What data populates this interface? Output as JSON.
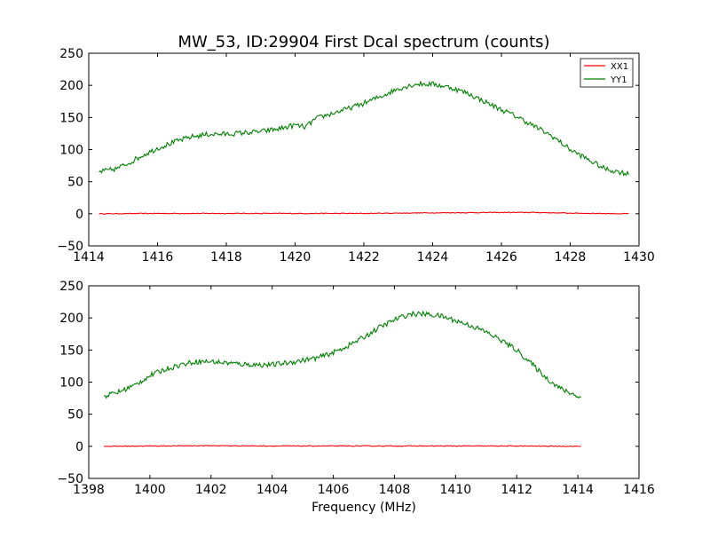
{
  "figure": {
    "title": "MW_53, ID:29904 First Dcal spectrum (counts)",
    "xlabel": "Frequency (MHz)"
  },
  "colors": {
    "xx1": "#ff0000",
    "yy1": "#008000"
  },
  "chart_data": [
    {
      "type": "line",
      "xlim": [
        1414,
        1430
      ],
      "ylim": [
        -50,
        250
      ],
      "xticks": [
        1414,
        1416,
        1418,
        1420,
        1422,
        1424,
        1426,
        1428,
        1430
      ],
      "xtick_labels": [
        "1414",
        "1416",
        "1418",
        "1420",
        "1422",
        "1424",
        "1426",
        "1428",
        "1430"
      ],
      "yticks": [
        -50,
        0,
        50,
        100,
        150,
        200,
        250
      ],
      "ytick_labels": [
        "−50",
        "0",
        "50",
        "100",
        "150",
        "200",
        "250"
      ],
      "legend": {
        "location": "top-right",
        "entries": [
          "XX1",
          "YY1"
        ]
      },
      "series": [
        {
          "name": "XX1",
          "color": "#ff0000",
          "x": [
            1414.3,
            1416,
            1418,
            1420,
            1422,
            1424,
            1426,
            1427,
            1428,
            1429.7
          ],
          "y": [
            0,
            0.5,
            0.5,
            0.5,
            0.5,
            1.5,
            2,
            2,
            1,
            0
          ]
        },
        {
          "name": "YY1",
          "color": "#008000",
          "x": [
            1414.3,
            1414.8,
            1415.2,
            1415.6,
            1416,
            1416.5,
            1417,
            1417.5,
            1418,
            1418.5,
            1419,
            1419.5,
            1420,
            1420.3,
            1420.6,
            1421,
            1421.5,
            1422,
            1422.5,
            1423,
            1423.5,
            1424,
            1424.5,
            1425,
            1425.5,
            1426,
            1426.5,
            1427,
            1427.5,
            1428,
            1428.5,
            1429,
            1429.7
          ],
          "y": [
            65,
            70,
            80,
            92,
            102,
            112,
            120,
            124,
            124,
            126,
            128,
            132,
            138,
            135,
            148,
            155,
            163,
            172,
            183,
            195,
            202,
            202,
            197,
            188,
            175,
            162,
            150,
            135,
            120,
            100,
            85,
            70,
            62
          ],
          "noise": 4
        }
      ]
    },
    {
      "type": "line",
      "xlim": [
        1398,
        1416
      ],
      "ylim": [
        -50,
        250
      ],
      "xticks": [
        1398,
        1400,
        1402,
        1404,
        1406,
        1408,
        1410,
        1412,
        1414,
        1416
      ],
      "xtick_labels": [
        "1398",
        "1400",
        "1402",
        "1404",
        "1406",
        "1408",
        "1410",
        "1412",
        "1414",
        "1416"
      ],
      "yticks": [
        -50,
        0,
        50,
        100,
        150,
        200,
        250
      ],
      "ytick_labels": [
        "−50",
        "0",
        "50",
        "100",
        "150",
        "200",
        "250"
      ],
      "xlabel": "Frequency (MHz)",
      "series": [
        {
          "name": "XX1",
          "color": "#ff0000",
          "x": [
            1398.5,
            1400,
            1402,
            1404,
            1406,
            1408,
            1410,
            1412,
            1414.1
          ],
          "y": [
            0,
            0.5,
            1,
            0.5,
            0.5,
            0.5,
            0.5,
            0.5,
            0
          ]
        },
        {
          "name": "YY1",
          "color": "#008000",
          "x": [
            1398.5,
            1399,
            1399.5,
            1400,
            1400.5,
            1401,
            1401.5,
            1402,
            1402.5,
            1403,
            1403.5,
            1404,
            1404.5,
            1405,
            1405.5,
            1406,
            1406.5,
            1407,
            1407.5,
            1408,
            1408.5,
            1409,
            1409.5,
            1410,
            1410.5,
            1411,
            1411.5,
            1412,
            1412.5,
            1413,
            1413.5,
            1414.1
          ],
          "y": [
            78,
            85,
            95,
            110,
            120,
            127,
            132,
            132,
            130,
            128,
            127,
            127,
            130,
            134,
            138,
            146,
            157,
            170,
            185,
            197,
            206,
            206,
            203,
            196,
            188,
            178,
            165,
            150,
            128,
            105,
            88,
            76
          ],
          "noise": 4
        }
      ]
    }
  ]
}
